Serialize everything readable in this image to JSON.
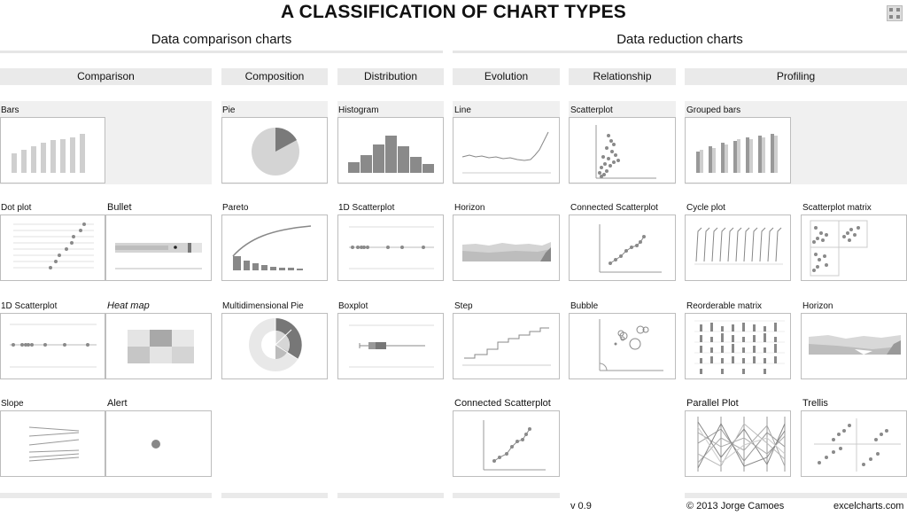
{
  "title": "A CLASSIFICATION OF CHART TYPES",
  "expand_icon": "expand-icon",
  "sections": {
    "comparison": "Data comparison charts",
    "reduction": "Data reduction charts"
  },
  "categories": {
    "comparison": "Comparison",
    "composition": "Composition",
    "distribution": "Distribution",
    "evolution": "Evolution",
    "relationship": "Relationship",
    "profiling": "Profiling"
  },
  "charts": {
    "bars": "Bars",
    "pie": "Pie",
    "histogram": "Histogram",
    "line": "Line",
    "scatterplot": "Scatterplot",
    "grouped_bars": "Grouped bars",
    "dot_plot": "Dot plot",
    "bullet": "Bullet",
    "pareto": "Pareto",
    "scatter_1d_distribution": "1D Scatterplot",
    "horizon_evolution": "Horizon",
    "connected_scatter_relationship": "Connected Scatterplot",
    "cycle_plot": "Cycle plot",
    "scatterplot_matrix": "Scatterplot matrix",
    "scatter_1d_comparison": "1D Scatterplot",
    "heat_map": "Heat map",
    "multidimensional_pie": "Multidimensional Pie",
    "boxplot": "Boxplot",
    "step": "Step",
    "bubble": "Bubble",
    "reorderable_matrix": "Reorderable matrix",
    "horizon_profiling": "Horizon",
    "slope": "Slope",
    "alert": "Alert",
    "connected_scatter_evolution": "Connected Scatterplot",
    "parallel_plot": "Parallel Plot",
    "trellis": "Trellis"
  },
  "footer": {
    "version": "v 0.9",
    "copyright": "© 2013 Jorge Camoes",
    "site": "excelcharts.com"
  },
  "colors": {
    "dark": "#7a7a7a",
    "mid": "#a8a8a8",
    "light": "#cfcfcf",
    "band": "#eaeaea",
    "cell": "#f0f0f0"
  }
}
